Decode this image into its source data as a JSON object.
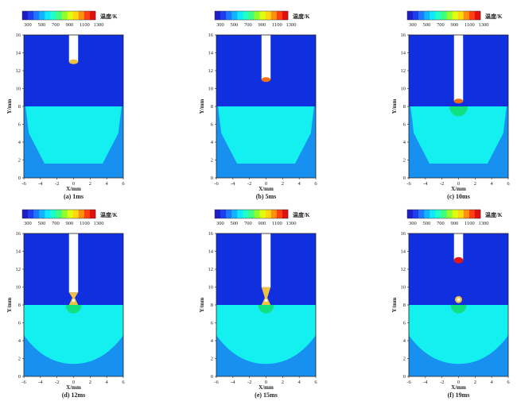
{
  "colors": {
    "background": "#ffffff",
    "gas": "#1030e0",
    "solid": "#14f0f0",
    "solid_low": "#1890f0",
    "mixed": "#10e080",
    "hot": "#f07010",
    "molten": "#f0c040",
    "very_hot": "#e01818"
  },
  "legend": {
    "title": "温度/K",
    "tick_labels": [
      "300",
      "500",
      "700",
      "900",
      "1100",
      "1300"
    ],
    "colors": [
      "#1d1dc8",
      "#1e3cf0",
      "#1e78ff",
      "#10b4ff",
      "#10e8ff",
      "#20ffc8",
      "#40ff80",
      "#90ff30",
      "#e0ff10",
      "#ffd810",
      "#ff9010",
      "#ff4010",
      "#e01010"
    ]
  },
  "axes": {
    "xlabel": "X/mm",
    "ylabel": "Y/mm",
    "x_ticks": [
      "-6",
      "-4",
      "-2",
      "0",
      "2",
      "4",
      "6"
    ],
    "y_ticks": [
      "0",
      "2",
      "4",
      "6",
      "8",
      "10",
      "12",
      "14",
      "16"
    ],
    "xlim": [
      -6,
      6
    ],
    "ylim": [
      0,
      16
    ]
  },
  "panels": [
    {
      "caption": "(a) 1ms",
      "time_ms": 1,
      "wire_tip_mm": 13.0,
      "drop_color": "#f0c040",
      "bridge": false,
      "pool": false,
      "pool_hot": false,
      "detached": false,
      "pool_rounded": false
    },
    {
      "caption": "(b) 5ms",
      "time_ms": 5,
      "wire_tip_mm": 11.0,
      "drop_color": "#f07010",
      "bridge": false,
      "pool": false,
      "pool_hot": false,
      "detached": false,
      "pool_rounded": false
    },
    {
      "caption": "(c) 10ms",
      "time_ms": 10,
      "wire_tip_mm": 8.6,
      "drop_color": "#f07010",
      "bridge": false,
      "pool": true,
      "pool_hot": false,
      "detached": false,
      "pool_rounded": false
    },
    {
      "caption": "(d) 12ms",
      "time_ms": 12,
      "wire_tip_mm": 9.4,
      "drop_color": "#f0c040",
      "bridge": true,
      "pool": true,
      "pool_hot": true,
      "detached": false,
      "pool_rounded": true
    },
    {
      "caption": "(e) 15ms",
      "time_ms": 15,
      "wire_tip_mm": 10.0,
      "drop_color": "#f0c040",
      "bridge": true,
      "pool": true,
      "pool_hot": true,
      "detached": false,
      "pool_rounded": true
    },
    {
      "caption": "(f) 19ms",
      "time_ms": 19,
      "wire_tip_mm": 13.0,
      "drop_color": "#e01818",
      "bridge": false,
      "pool": true,
      "pool_hot": true,
      "detached": true,
      "pool_rounded": true
    }
  ]
}
